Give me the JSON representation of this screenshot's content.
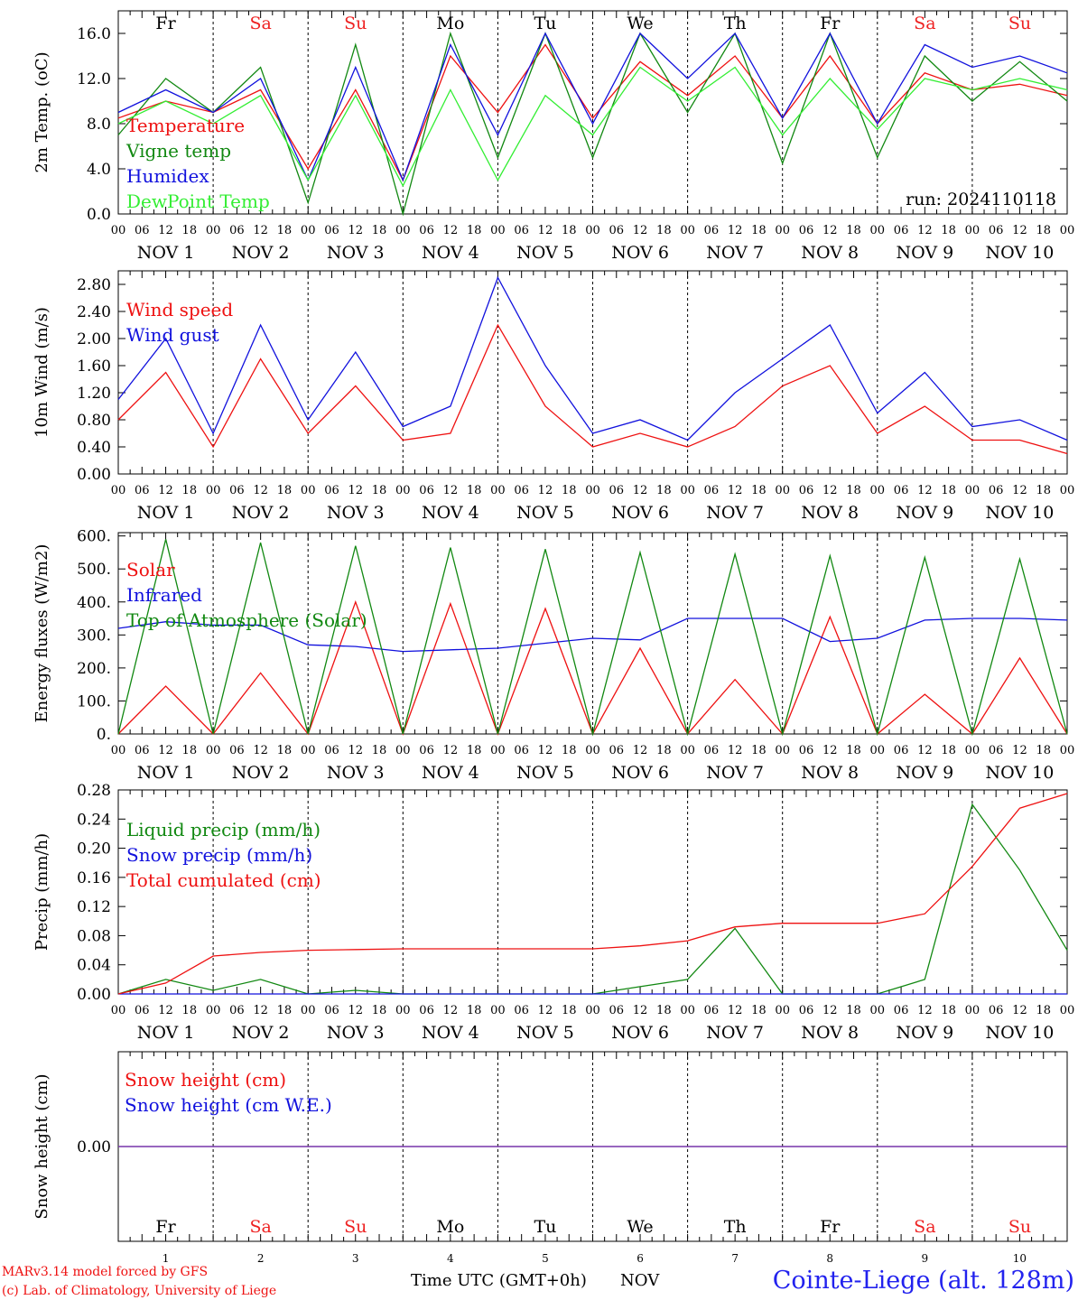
{
  "footer": {
    "model": "MARv3.14 model forced by GFS",
    "copyright": "(c) Lab. of Climatology, University of Liege",
    "xlabel": "Time UTC (GMT+0h)",
    "month": "NOV",
    "station": "Cointe-Liege (alt. 128m)"
  },
  "colors": {
    "red": "#ee1111",
    "green": "#118811",
    "blue": "#1111dd",
    "lightgreen": "#33ee33",
    "purple": "#7733aa",
    "weekend": "#ee2222"
  },
  "days": [
    "Fr",
    "Sa",
    "Su",
    "Mo",
    "Tu",
    "We",
    "Th",
    "Fr",
    "Sa",
    "Su"
  ],
  "weekend_flags": [
    false,
    true,
    true,
    false,
    false,
    false,
    false,
    false,
    true,
    true
  ],
  "date_labels": [
    "NOV  1",
    "NOV  2",
    "NOV  3",
    "NOV  4",
    "NOV  5",
    "NOV  6",
    "NOV  7",
    "NOV  8",
    "NOV  9",
    "NOV 10"
  ],
  "bottom_day_numbers": [
    "1",
    "2",
    "3",
    "4",
    "5",
    "6",
    "7",
    "8",
    "9",
    "10"
  ],
  "hour_ticks": [
    "00",
    "06",
    "12",
    "18"
  ],
  "chart_data": [
    {
      "type": "line",
      "ylabel": "2m Temp. (oC)",
      "ylim": [
        0,
        18
      ],
      "yticks": [
        "0.0",
        "4.0",
        "8.0",
        "12.0",
        "16.0"
      ],
      "ytick_values": [
        0,
        4,
        8,
        12,
        16
      ],
      "annotation": "run: 2024110118",
      "x": [
        0,
        12,
        24,
        36,
        48,
        60,
        72,
        84,
        96,
        108,
        120,
        132,
        144,
        156,
        168,
        180,
        192,
        204,
        216,
        228,
        240
      ],
      "series": [
        {
          "name": "Temperature",
          "color": "red",
          "values": [
            8.5,
            10,
            9,
            11,
            4,
            11,
            3,
            14,
            9,
            15,
            8.5,
            13.5,
            10.5,
            14,
            8.5,
            14,
            8,
            12.5,
            11,
            11.5,
            10.5
          ]
        },
        {
          "name": "Vigne temp",
          "color": "green",
          "values": [
            7,
            12,
            9,
            13,
            1,
            15,
            0,
            16,
            5,
            16,
            5,
            16,
            9,
            16,
            4.5,
            16,
            5,
            14,
            10,
            13.5,
            10
          ]
        },
        {
          "name": "Humidex",
          "color": "blue",
          "values": [
            9,
            11,
            9,
            12,
            3,
            13,
            3,
            15,
            7,
            16,
            8,
            16,
            12,
            16,
            8.5,
            16,
            8,
            15,
            13,
            14,
            12.5
          ]
        },
        {
          "name": "DewPoint Temp",
          "color": "lightgreen",
          "values": [
            8,
            10,
            8,
            10.5,
            3,
            10.5,
            2.5,
            11,
            3,
            10.5,
            7,
            13,
            10,
            13,
            7,
            12,
            7.5,
            12,
            11,
            12,
            11
          ]
        }
      ]
    },
    {
      "type": "line",
      "ylabel": "10m Wind (m/s)",
      "ylim": [
        0,
        3.0
      ],
      "yticks": [
        "0.00",
        "0.40",
        "0.80",
        "1.20",
        "1.60",
        "2.00",
        "2.40",
        "2.80"
      ],
      "ytick_values": [
        0,
        0.4,
        0.8,
        1.2,
        1.6,
        2.0,
        2.4,
        2.8
      ],
      "x": [
        0,
        12,
        24,
        36,
        48,
        60,
        72,
        84,
        96,
        108,
        120,
        132,
        144,
        156,
        168,
        180,
        192,
        204,
        216,
        228,
        240
      ],
      "series": [
        {
          "name": "Wind speed",
          "color": "red",
          "values": [
            0.8,
            1.5,
            0.4,
            1.7,
            0.6,
            1.3,
            0.5,
            0.6,
            2.2,
            1.0,
            0.4,
            0.6,
            0.4,
            0.7,
            1.3,
            1.6,
            0.6,
            1.0,
            0.5,
            0.5,
            0.3
          ]
        },
        {
          "name": "Wind gust",
          "color": "blue",
          "values": [
            1.1,
            2.0,
            0.6,
            2.2,
            0.8,
            1.8,
            0.7,
            1.0,
            2.9,
            1.6,
            0.6,
            0.8,
            0.5,
            1.2,
            1.7,
            2.2,
            0.9,
            1.5,
            0.7,
            0.8,
            0.5
          ]
        }
      ]
    },
    {
      "type": "line",
      "ylabel": "Energy fluxes (W/m2)",
      "ylim": [
        0,
        610
      ],
      "yticks": [
        "0.",
        "100.",
        "200.",
        "300.",
        "400.",
        "500.",
        "600."
      ],
      "ytick_values": [
        0,
        100,
        200,
        300,
        400,
        500,
        600
      ],
      "x": [
        0,
        12,
        24,
        36,
        48,
        60,
        72,
        84,
        96,
        108,
        120,
        132,
        144,
        156,
        168,
        180,
        192,
        204,
        216,
        228,
        240
      ],
      "series": [
        {
          "name": "Solar",
          "color": "red",
          "values": [
            0,
            145,
            0,
            185,
            0,
            400,
            0,
            395,
            0,
            380,
            0,
            260,
            0,
            165,
            0,
            355,
            0,
            120,
            0,
            230,
            0
          ]
        },
        {
          "name": "Infrared",
          "color": "blue",
          "values": [
            320,
            340,
            330,
            330,
            270,
            265,
            250,
            255,
            260,
            275,
            290,
            285,
            350,
            350,
            350,
            280,
            290,
            345,
            350,
            350,
            345
          ]
        },
        {
          "name": "Top of Atmosphere (Solar)",
          "color": "green",
          "values": [
            0,
            590,
            0,
            580,
            0,
            570,
            0,
            565,
            0,
            560,
            0,
            550,
            0,
            545,
            0,
            540,
            0,
            535,
            0,
            530,
            0
          ]
        }
      ]
    },
    {
      "type": "line",
      "ylabel": "Precip (mm/h)",
      "ylim": [
        0,
        0.28
      ],
      "yticks": [
        "0.00",
        "0.04",
        "0.08",
        "0.12",
        "0.16",
        "0.20",
        "0.24",
        "0.28"
      ],
      "ytick_values": [
        0,
        0.04,
        0.08,
        0.12,
        0.16,
        0.2,
        0.24,
        0.28
      ],
      "x": [
        0,
        12,
        24,
        36,
        48,
        60,
        72,
        84,
        96,
        108,
        120,
        132,
        144,
        156,
        168,
        180,
        192,
        204,
        216,
        228,
        240
      ],
      "series": [
        {
          "name": "Liquid precip (mm/h)",
          "color": "green",
          "values": [
            0,
            0.02,
            0.005,
            0.02,
            0,
            0.005,
            0,
            0,
            0,
            0,
            0,
            0.01,
            0.02,
            0.09,
            0,
            0,
            0,
            0.02,
            0.26,
            0.17,
            0.06
          ]
        },
        {
          "name": "Snow precip (mm/h)",
          "color": "blue",
          "values": [
            0,
            0,
            0,
            0,
            0,
            0,
            0,
            0,
            0,
            0,
            0,
            0,
            0,
            0,
            0,
            0,
            0,
            0,
            0,
            0,
            0
          ]
        },
        {
          "name": "Total cumulated (cm)",
          "color": "red",
          "values": [
            0,
            0.015,
            0.052,
            0.057,
            0.06,
            0.061,
            0.062,
            0.062,
            0.062,
            0.062,
            0.062,
            0.066,
            0.073,
            0.092,
            0.097,
            0.097,
            0.097,
            0.11,
            0.175,
            0.255,
            0.275
          ]
        }
      ]
    },
    {
      "type": "line",
      "ylabel": "Snow height (cm)",
      "ytick_labels": [
        "0.00"
      ],
      "ytick_values": [
        0
      ],
      "x": [
        0,
        240
      ],
      "series": [
        {
          "name": "Snow height (cm)",
          "color": "red",
          "values": [
            0,
            0
          ]
        },
        {
          "name": "Snow height (cm W.E.)",
          "color": "blue",
          "values": [
            0,
            0
          ]
        }
      ]
    }
  ]
}
